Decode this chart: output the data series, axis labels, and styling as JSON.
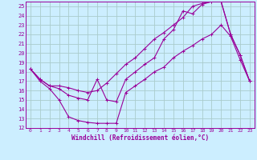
{
  "xlabel": "Windchill (Refroidissement éolien,°C)",
  "bg_color": "#cceeff",
  "grid_color": "#aacccc",
  "line_color": "#990099",
  "xlim": [
    -0.5,
    23.5
  ],
  "ylim": [
    12,
    25.5
  ],
  "xticks": [
    0,
    1,
    2,
    3,
    4,
    5,
    6,
    7,
    8,
    9,
    10,
    11,
    12,
    13,
    14,
    15,
    16,
    17,
    18,
    19,
    20,
    21,
    22,
    23
  ],
  "yticks": [
    12,
    13,
    14,
    15,
    16,
    17,
    18,
    19,
    20,
    21,
    22,
    23,
    24,
    25
  ],
  "line1_x": [
    0,
    1,
    2,
    3,
    4,
    5,
    6,
    7,
    8,
    9,
    10,
    11,
    12,
    13,
    14,
    15,
    16,
    17,
    18,
    19,
    20,
    21,
    22,
    23
  ],
  "line1_y": [
    18.3,
    17.0,
    16.2,
    15.0,
    13.2,
    12.8,
    12.6,
    12.5,
    12.5,
    12.5,
    15.8,
    16.5,
    17.2,
    18.0,
    18.5,
    19.5,
    20.2,
    20.8,
    21.5,
    22.0,
    23.0,
    21.8,
    19.3,
    17.0
  ],
  "line2_x": [
    0,
    1,
    2,
    3,
    4,
    5,
    6,
    7,
    8,
    9,
    10,
    11,
    12,
    13,
    14,
    15,
    16,
    17,
    18,
    19,
    20,
    21,
    22,
    23
  ],
  "line2_y": [
    18.3,
    17.2,
    16.5,
    16.2,
    15.5,
    15.2,
    15.0,
    17.2,
    15.0,
    14.8,
    17.2,
    18.0,
    18.8,
    19.5,
    21.5,
    22.5,
    24.5,
    24.2,
    25.2,
    25.5,
    25.5,
    22.0,
    19.8,
    17.0
  ],
  "line3_x": [
    0,
    1,
    2,
    3,
    4,
    5,
    6,
    7,
    8,
    9,
    10,
    11,
    12,
    13,
    14,
    15,
    16,
    17,
    18,
    19,
    20,
    21,
    22,
    23
  ],
  "line3_y": [
    18.3,
    17.2,
    16.5,
    16.5,
    16.3,
    16.0,
    15.8,
    16.0,
    16.8,
    17.8,
    18.8,
    19.5,
    20.5,
    21.5,
    22.2,
    23.0,
    23.8,
    25.0,
    25.3,
    25.5,
    25.5,
    22.0,
    19.8,
    17.0
  ]
}
